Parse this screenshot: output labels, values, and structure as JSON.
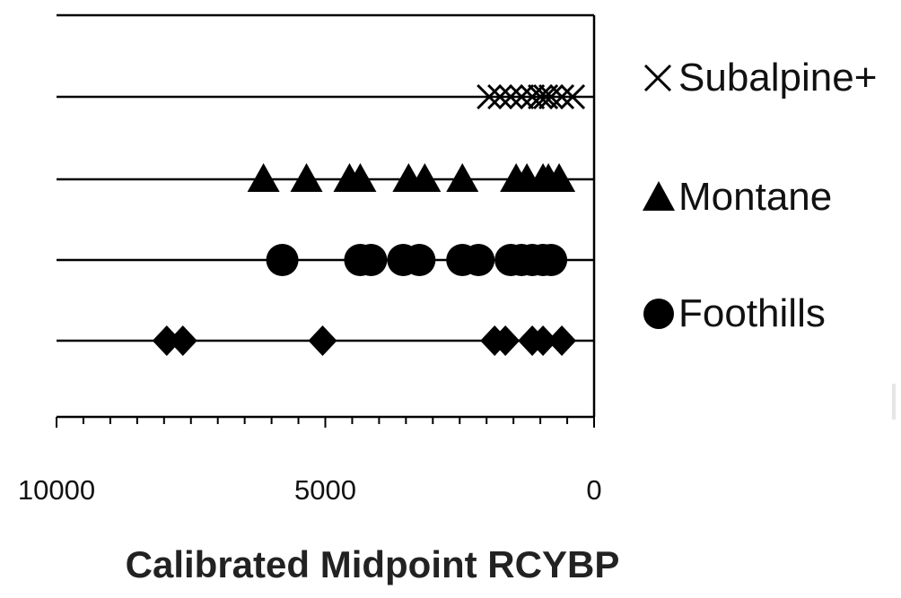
{
  "chart_data": {
    "type": "scatter",
    "title": "",
    "xlabel": "Calibrated Midpoint RCYBP",
    "ylabel": "",
    "xlim": [
      10000,
      0
    ],
    "x_reversed": true,
    "x_ticks": [
      10000,
      5000,
      0
    ],
    "x_tick_labels": [
      "10000",
      "5000",
      "0"
    ],
    "x_minor_tick_step": 500,
    "rows": 4,
    "grid": "horizontal lines at each series row",
    "legend_position": "right",
    "series": [
      {
        "name": "Subalpine+",
        "marker": "x",
        "row": 4,
        "x": [
          1950,
          1750,
          1550,
          1350,
          1150,
          1000,
          900,
          800,
          600,
          400
        ]
      },
      {
        "name": "Montane",
        "marker": "triangle",
        "row": 3,
        "x": [
          6150,
          5350,
          4550,
          4350,
          3450,
          3150,
          2450,
          1450,
          1250,
          950,
          850,
          650
        ]
      },
      {
        "name": "Foothills",
        "marker": "circle",
        "row": 2,
        "x": [
          5800,
          4350,
          4150,
          3550,
          3250,
          2450,
          2150,
          1550,
          1350,
          1150,
          950,
          800
        ]
      },
      {
        "name": "",
        "marker": "diamond",
        "row": 1,
        "x": [
          7950,
          7650,
          5050,
          1850,
          1650,
          1150,
          950,
          600
        ]
      }
    ],
    "colors": {
      "marker": "#000000",
      "axis": "#000000",
      "gridline": "#000000"
    }
  }
}
